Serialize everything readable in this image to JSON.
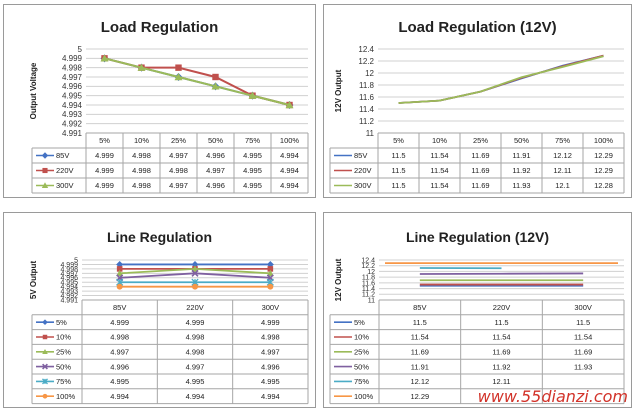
{
  "watermark": "www.55dianzi.com",
  "chart_data": [
    {
      "type": "line",
      "title": "Load Regulation",
      "ylabel": "Output Voltage",
      "xlabel": "",
      "categories": [
        "5%",
        "10%",
        "25%",
        "50%",
        "75%",
        "100%"
      ],
      "ylim": [
        4.991,
        5
      ],
      "yticks": [
        "4.991",
        "4.992",
        "4.993",
        "4.994",
        "4.995",
        "4.996",
        "4.997",
        "4.998",
        "4.999",
        "5"
      ],
      "grid": true,
      "legend": "data-table",
      "series": [
        {
          "name": "85V",
          "color": "#4472c4",
          "marker": "diamond",
          "values": [
            4.999,
            4.998,
            4.997,
            4.996,
            4.995,
            4.994
          ]
        },
        {
          "name": "220V",
          "color": "#c0504d",
          "marker": "square",
          "values": [
            4.999,
            4.998,
            4.998,
            4.997,
            4.995,
            4.994
          ]
        },
        {
          "name": "300V",
          "color": "#9bbb59",
          "marker": "triangle",
          "values": [
            4.999,
            4.998,
            4.997,
            4.996,
            4.995,
            4.994
          ]
        }
      ]
    },
    {
      "type": "line",
      "title": "Load Regulation (12V)",
      "ylabel": "12V Output",
      "xlabel": "",
      "categories": [
        "5%",
        "10%",
        "25%",
        "50%",
        "75%",
        "100%"
      ],
      "ylim": [
        11,
        12.4
      ],
      "yticks": [
        "11",
        "11.2",
        "11.4",
        "11.6",
        "11.8",
        "12",
        "12.2",
        "12.4"
      ],
      "grid": true,
      "legend": "data-table",
      "series": [
        {
          "name": "85V",
          "color": "#4472c4",
          "marker": "none",
          "values": [
            11.5,
            11.54,
            11.69,
            11.91,
            12.12,
            12.29
          ]
        },
        {
          "name": "220V",
          "color": "#c0504d",
          "marker": "none",
          "values": [
            11.5,
            11.54,
            11.69,
            11.92,
            12.11,
            12.29
          ]
        },
        {
          "name": "300V",
          "color": "#9bbb59",
          "marker": "none",
          "values": [
            11.5,
            11.54,
            11.69,
            11.93,
            12.1,
            12.28
          ]
        }
      ]
    },
    {
      "type": "line",
      "title": "Line Regulation",
      "ylabel": "5V Output",
      "xlabel": "",
      "categories": [
        "85V",
        "220V",
        "300V"
      ],
      "ylim": [
        4.991,
        5
      ],
      "yticks": [
        "4.991",
        "4.992",
        "4.993",
        "4.994",
        "4.995",
        "4.996",
        "4.997",
        "4.998",
        "4.999",
        "5"
      ],
      "grid": true,
      "legend": "data-table",
      "series": [
        {
          "name": "5%",
          "color": "#4472c4",
          "marker": "diamond",
          "values": [
            4.999,
            4.999,
            4.999
          ]
        },
        {
          "name": "10%",
          "color": "#c0504d",
          "marker": "square",
          "values": [
            4.998,
            4.998,
            4.998
          ]
        },
        {
          "name": "25%",
          "color": "#9bbb59",
          "marker": "triangle",
          "values": [
            4.997,
            4.998,
            4.997
          ]
        },
        {
          "name": "50%",
          "color": "#7f60a0",
          "marker": "x",
          "values": [
            4.996,
            4.997,
            4.996
          ]
        },
        {
          "name": "75%",
          "color": "#4bacc6",
          "marker": "star",
          "values": [
            4.995,
            4.995,
            4.995
          ]
        },
        {
          "name": "100%",
          "color": "#f79646",
          "marker": "circle",
          "values": [
            4.994,
            4.994,
            4.994
          ]
        }
      ]
    },
    {
      "type": "line",
      "title": "Line Regulation (12V)",
      "ylabel": "12V Output",
      "xlabel": "",
      "categories": [
        "85V",
        "220V",
        "300V"
      ],
      "ylim": [
        11,
        12.4
      ],
      "yticks": [
        "11",
        "11.2",
        "11.4",
        "11.6",
        "11.8",
        "12",
        "12.2",
        "12.4"
      ],
      "grid": true,
      "legend": "data-table",
      "series": [
        {
          "name": "5%",
          "color": "#4472c4",
          "marker": "none",
          "values": [
            11.5,
            11.5,
            11.5
          ]
        },
        {
          "name": "10%",
          "color": "#c0504d",
          "marker": "none",
          "values": [
            11.54,
            11.54,
            11.54
          ]
        },
        {
          "name": "25%",
          "color": "#9bbb59",
          "marker": "none",
          "values": [
            11.69,
            11.69,
            11.69
          ]
        },
        {
          "name": "50%",
          "color": "#7f60a0",
          "marker": "none",
          "values": [
            11.91,
            11.92,
            11.93
          ]
        },
        {
          "name": "75%",
          "color": "#4bacc6",
          "marker": "none",
          "values": [
            12.12,
            12.11,
            null
          ]
        },
        {
          "name": "100%",
          "color": "#f79646",
          "marker": "none",
          "values": [
            12.29,
            null,
            null
          ]
        }
      ]
    }
  ]
}
